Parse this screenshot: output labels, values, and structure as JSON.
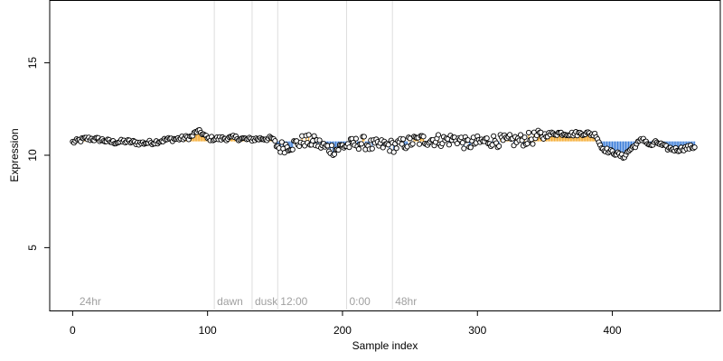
{
  "chart_data": {
    "type": "scatter",
    "xlabel": "Sample index",
    "ylabel": "Expression",
    "xlim": [
      -17,
      480
    ],
    "ylim": [
      1.6,
      18.4
    ],
    "xticks": [
      0,
      100,
      200,
      300,
      400
    ],
    "yticks": [
      5,
      10,
      15
    ],
    "baseline": 10.75,
    "grid": false,
    "legend": "none",
    "vertical_markers": [
      {
        "x": 3,
        "label": "24hr",
        "show_line": false
      },
      {
        "x": 105,
        "label": "dawn",
        "show_line": true
      },
      {
        "x": 133,
        "label": "dusk",
        "show_line": true
      },
      {
        "x": 152,
        "label": "12:00",
        "show_line": true
      },
      {
        "x": 203,
        "label": "0:00",
        "show_line": true
      },
      {
        "x": 237,
        "label": "48hr",
        "show_line": true
      }
    ],
    "profile": [
      [
        0,
        10.7
      ],
      [
        10,
        10.9
      ],
      [
        20,
        10.85
      ],
      [
        30,
        10.7
      ],
      [
        40,
        10.75
      ],
      [
        50,
        10.65
      ],
      [
        60,
        10.7
      ],
      [
        70,
        10.85
      ],
      [
        80,
        10.9
      ],
      [
        88,
        11.0
      ],
      [
        92,
        11.3
      ],
      [
        96,
        11.2
      ],
      [
        100,
        10.9
      ],
      [
        110,
        10.9
      ],
      [
        120,
        10.95
      ],
      [
        130,
        10.85
      ],
      [
        140,
        10.9
      ],
      [
        148,
        10.9
      ],
      [
        153,
        10.4
      ],
      [
        158,
        10.5
      ],
      [
        165,
        10.6
      ],
      [
        172,
        10.8
      ],
      [
        180,
        10.7
      ],
      [
        188,
        10.4
      ],
      [
        195,
        10.3
      ],
      [
        200,
        10.5
      ],
      [
        208,
        10.6
      ],
      [
        215,
        10.7
      ],
      [
        222,
        10.5
      ],
      [
        230,
        10.55
      ],
      [
        238,
        10.5
      ],
      [
        245,
        10.6
      ],
      [
        255,
        10.8
      ],
      [
        265,
        10.85
      ],
      [
        275,
        10.8
      ],
      [
        285,
        10.9
      ],
      [
        292,
        10.6
      ],
      [
        300,
        10.7
      ],
      [
        310,
        10.8
      ],
      [
        320,
        10.75
      ],
      [
        330,
        10.8
      ],
      [
        340,
        10.9
      ],
      [
        350,
        11.1
      ],
      [
        360,
        11.2
      ],
      [
        370,
        11.15
      ],
      [
        380,
        11.2
      ],
      [
        388,
        11.1
      ],
      [
        392,
        10.4
      ],
      [
        398,
        10.2
      ],
      [
        403,
        10.1
      ],
      [
        408,
        9.9
      ],
      [
        413,
        10.3
      ],
      [
        418,
        10.6
      ],
      [
        423,
        10.9
      ],
      [
        428,
        10.5
      ],
      [
        433,
        10.7
      ],
      [
        440,
        10.4
      ],
      [
        448,
        10.3
      ],
      [
        455,
        10.4
      ],
      [
        461,
        10.45
      ]
    ],
    "n_points": 462,
    "colors": {
      "above": "#f5a623",
      "below": "#3b7dd8",
      "point_stroke": "#000000",
      "point_fill": "#ffffff",
      "marker_line": "#dddddd",
      "marker_text": "#a0a0a0"
    }
  }
}
